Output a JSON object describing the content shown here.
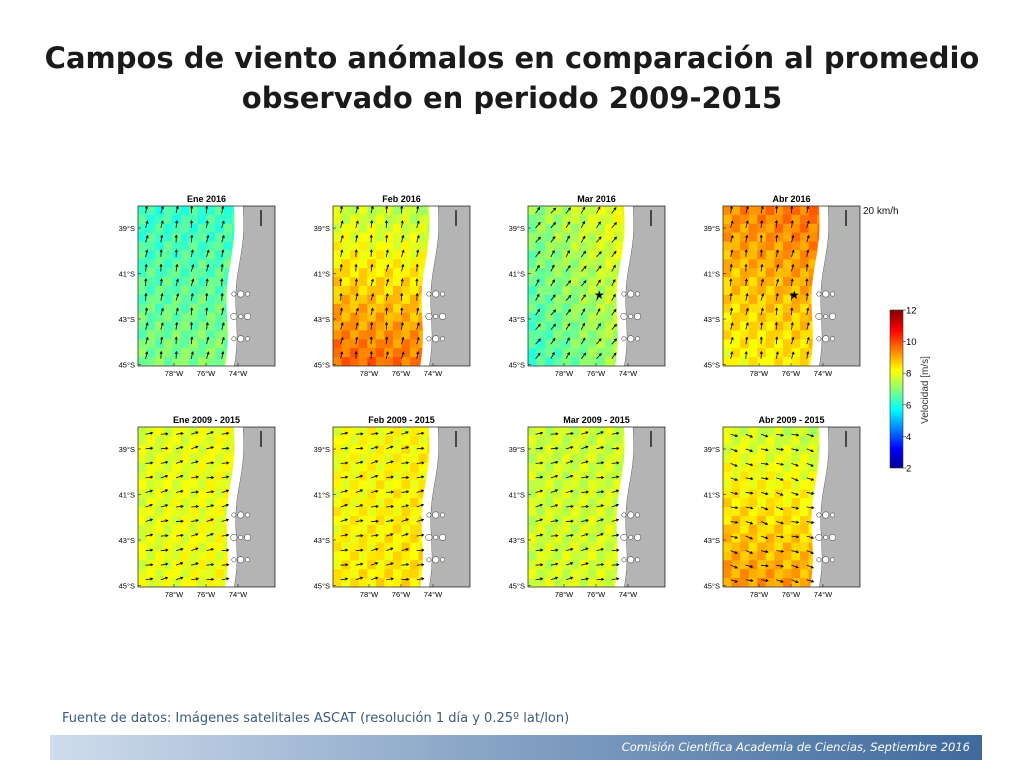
{
  "slide": {
    "title_line1": "Campos de viento anómalos en comparación al promedio",
    "title_line2": "observado en periodo 2009-2015",
    "source": "Fuente de datos: Imágenes satelitales ASCAT (resolución 1 día y 0.25º lat/lon)",
    "footer": "Comisión Científica Academia de Ciencias, Septiembre 2016"
  },
  "panels": [
    {
      "title": "Ene 2016",
      "base_speed": 6.2,
      "grad_x": 0.1,
      "grad_y": 0.7,
      "flow": "north",
      "star": false
    },
    {
      "title": "Feb 2016",
      "base_speed": 7.6,
      "grad_x": -0.3,
      "grad_y": 2.2,
      "flow": "north",
      "star": false
    },
    {
      "title": "Mar 2016",
      "base_speed": 7.0,
      "grad_x": 1.6,
      "grad_y": -0.8,
      "flow": "north-east",
      "star": true
    },
    {
      "title": "Abr 2016",
      "base_speed": 9.3,
      "grad_x": 0.5,
      "grad_y": -1.2,
      "flow": "north",
      "star": true
    },
    {
      "title": "Ene 2009 - 2015",
      "base_speed": 7.8,
      "grad_x": 0.3,
      "grad_y": 0.1,
      "flow": "east",
      "star": false
    },
    {
      "title": "Feb 2009 - 2015",
      "base_speed": 8.0,
      "grad_x": 0.3,
      "grad_y": 0.3,
      "flow": "east",
      "star": false
    },
    {
      "title": "Mar 2009 - 2015",
      "base_speed": 7.6,
      "grad_x": 0.1,
      "grad_y": 0.1,
      "flow": "east",
      "star": false
    },
    {
      "title": "Abr 2009 - 2015",
      "base_speed": 7.7,
      "grad_x": -0.3,
      "grad_y": 1.6,
      "flow": "south-east",
      "star": false
    }
  ],
  "axes": {
    "lat_ticks": [
      "39°S",
      "41°S",
      "43°S",
      "45°S"
    ],
    "lon_ticks": [
      "78°W",
      "76°W",
      "74°W"
    ]
  },
  "colorbar": {
    "label": "Velocidad [m/s]",
    "ticks": [
      "2",
      "4",
      "6",
      "8",
      "10",
      "12"
    ],
    "min": 2,
    "max": 12
  },
  "scale_label": "20 km/h",
  "colors": {
    "land": "#b4b4b4",
    "ocean_blank": "#ffffff",
    "footer_dark": "#3f6a9c",
    "source_text": "#3a5a80"
  }
}
